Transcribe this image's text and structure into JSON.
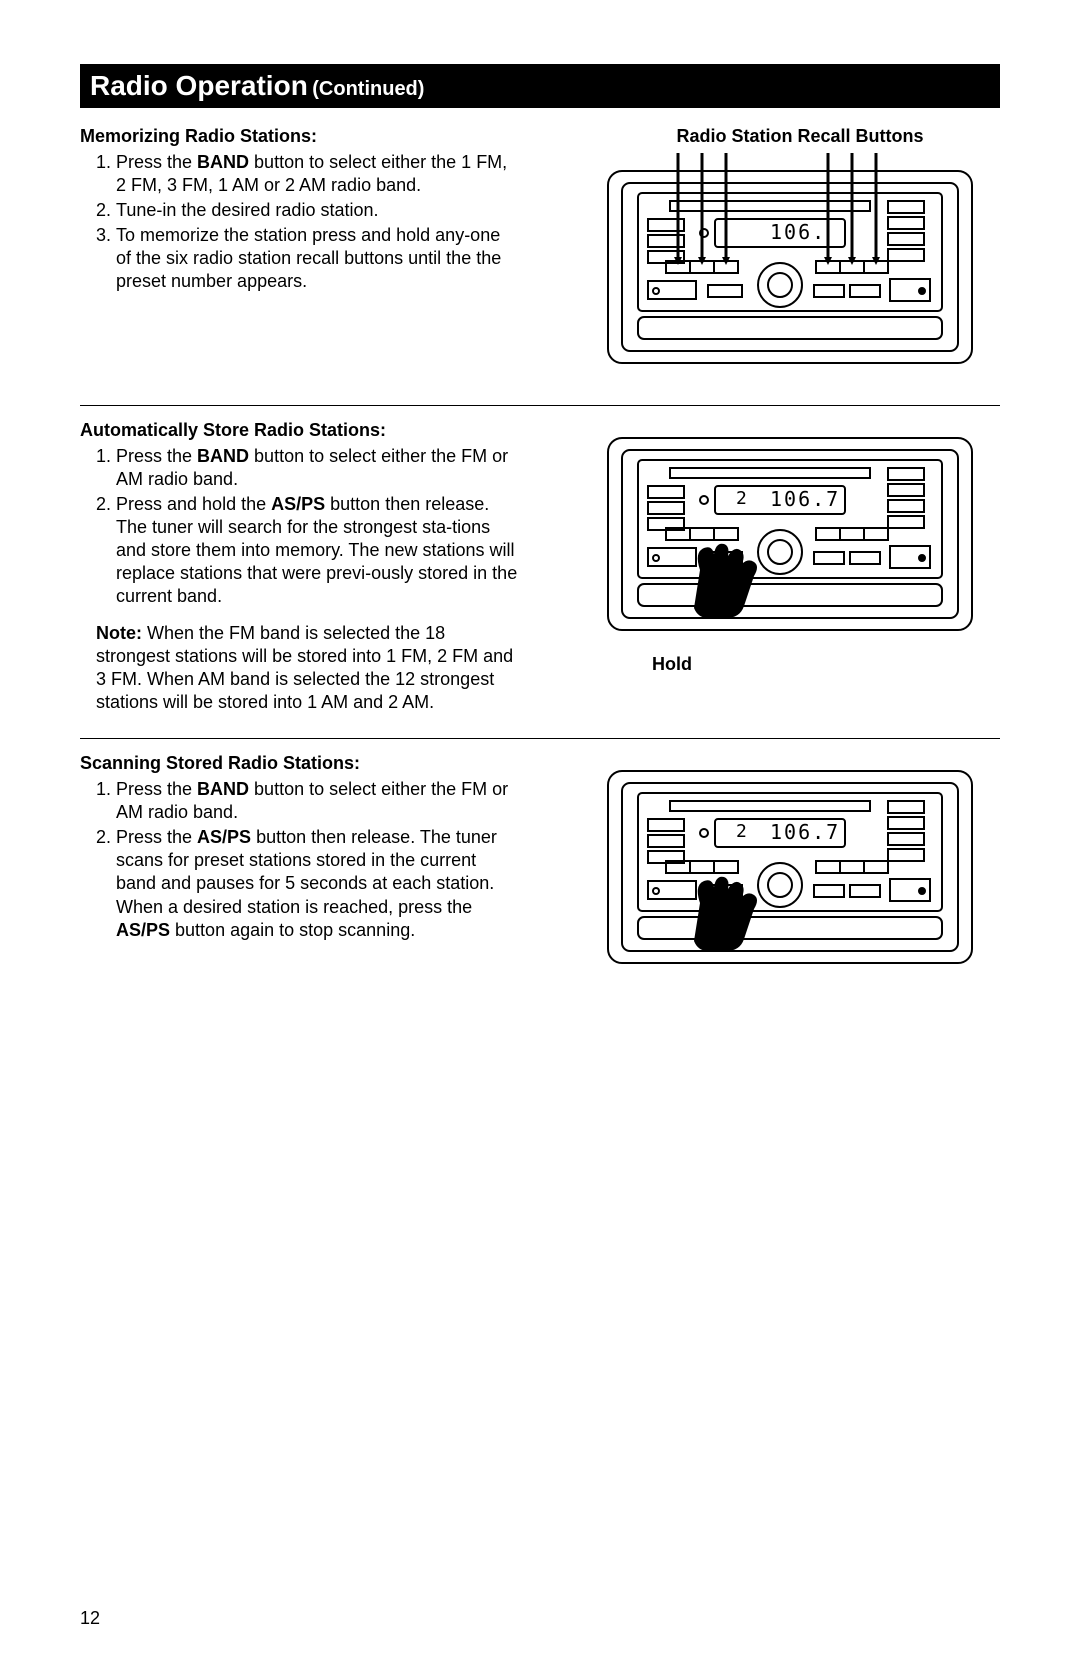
{
  "header": {
    "main": "Radio Operation",
    "sub": "(Continued)"
  },
  "section1": {
    "title": "Memorizing Radio Stations:",
    "items": [
      {
        "pre": "Press the ",
        "bold": "BAND",
        "post": " button to select either the 1 FM, 2 FM, 3 FM, 1 AM or 2 AM radio band."
      },
      {
        "text": "Tune-in the desired radio station."
      },
      {
        "text": "To memorize the station press and hold any-one of the six radio station recall buttons until the the preset number appears."
      }
    ],
    "figure_title": "Radio Station Recall Buttons",
    "figure": {
      "display": "106.",
      "arrows": true,
      "hand": false,
      "preset": ""
    }
  },
  "section2": {
    "title": "Automatically Store Radio Stations:",
    "items": [
      {
        "pre": "Press the ",
        "bold": "BAND",
        "post": " button to select either the FM or AM radio band."
      },
      {
        "pre": "Press and hold the ",
        "bold": "AS/PS",
        "post": " button then release. The tuner will search for the strongest sta-tions and store them into memory. The new stations will replace stations that were previ-ously stored in the current band."
      }
    ],
    "note": {
      "bold": "Note:",
      "text": " When the FM band is selected the 18 strongest stations will be stored into 1 FM, 2 FM and 3 FM. When AM band is selected the 12 strongest stations will be stored into 1 AM and 2 AM."
    },
    "figure_label": "Hold",
    "figure": {
      "display": "106.7",
      "preset": "2",
      "arrows": false,
      "hand": true
    }
  },
  "section3": {
    "title": "Scanning Stored Radio Stations:",
    "items": [
      {
        "pre": "Press the ",
        "bold": "BAND",
        "post": " button to select either the FM or AM radio band."
      },
      {
        "pre": "Press the ",
        "bold": "AS/PS",
        "post": " button then release. The tuner scans for preset stations stored in the current band and pauses for 5 seconds at each station. When a desired station is reached, press the ",
        "bold2": "AS/PS",
        "post2": " button again to stop scanning."
      }
    ],
    "figure": {
      "display": "106.7",
      "preset": "2",
      "arrows": false,
      "hand": true
    }
  },
  "page_number": "12",
  "style": {
    "header_fontsize": 28,
    "sub_fontsize": 20,
    "h3_fontsize": 18,
    "body_fontsize": 18,
    "text_color": "#000000",
    "bg_color": "#ffffff",
    "header_bg": "#000000",
    "header_fg": "#ffffff",
    "radio_stroke": "#000000",
    "radio_linewidth": 2
  }
}
